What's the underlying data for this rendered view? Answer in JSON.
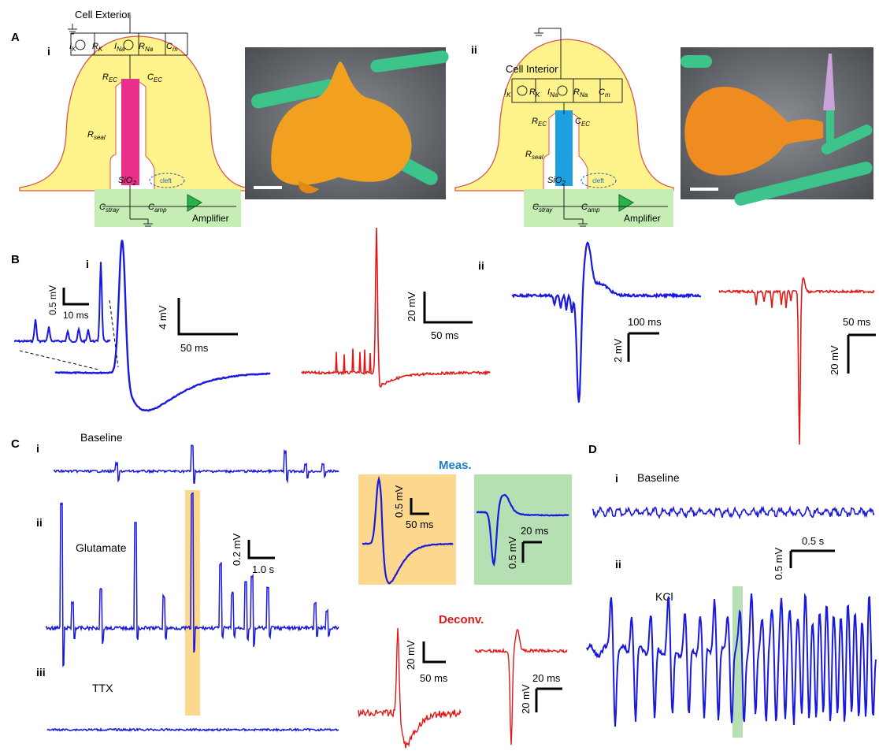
{
  "colors": {
    "measured": "#1a1adc",
    "deconvolved": "#e01818",
    "cell_fill": "#fff48c",
    "cell_outline": "#d9534f",
    "amp_box": "#c6eeb4",
    "nanowire_pink": "#e8308a",
    "nanowire_blue": "#1e9fe0",
    "highlight_orange": "#fbd88e",
    "highlight_green": "#b7dfb4",
    "meas_text": "#1a7fc4",
    "deconv_text": "#e01818"
  },
  "panels": {
    "A": {
      "letter": "A",
      "i": {
        "roman": "i",
        "cell_exterior": "Cell Exterior",
        "ik": "I",
        "ik_sub": "K",
        "rk": "R",
        "rk_sub": "K",
        "ina": "I",
        "ina_sub": "Na",
        "rna": "R",
        "rna_sub": "Na",
        "cm": "C",
        "cm_sub": "m",
        "rec": "R",
        "rec_sub": "EC",
        "cec": "C",
        "cec_sub": "EC",
        "rseal": "R",
        "rseal_sub": "seal",
        "sio2": "SiO",
        "sio2_sub": "2",
        "cleft": "cleft",
        "cstray": "C",
        "cstray_sub": "stray",
        "camp": "C",
        "camp_sub": "amp",
        "amplifier": "Amplifier"
      },
      "ii": {
        "roman": "ii",
        "cell_interior": "Cell Interior",
        "ik": "I",
        "ik_sub": "K",
        "rk": "R",
        "rk_sub": "K",
        "ina": "I",
        "ina_sub": "Na",
        "rna": "R",
        "rna_sub": "Na",
        "cm": "C",
        "cm_sub": "m",
        "rec": "R",
        "rec_sub": "EC",
        "cec": "C",
        "cec_sub": "EC",
        "rseal": "R",
        "rseal_sub": "seal",
        "sio2": "SiO",
        "sio2_sub": "2",
        "cleft": "cleft",
        "cstray": "C",
        "cstray_sub": "stray",
        "camp": "C",
        "camp_sub": "amp",
        "amplifier": "Amplifier"
      }
    },
    "B": {
      "letter": "B",
      "i": {
        "roman": "i",
        "inset_v": "0.5 mV",
        "inset_t": "10 ms",
        "blue_v": "4 mV",
        "blue_t": "50 ms",
        "red_v": "20 mV",
        "red_t": "50 ms"
      },
      "ii": {
        "roman": "ii",
        "blue_t": "100 ms",
        "blue_v": "2 mV",
        "red_t": "50 ms",
        "red_v": "20 mV"
      }
    },
    "C": {
      "letter": "C",
      "i": {
        "roman": "i",
        "condition": "Baseline"
      },
      "ii": {
        "roman": "ii",
        "condition": "Glutamate",
        "scale_v": "0.2 mV",
        "scale_t": "1.0 s"
      },
      "iii": {
        "roman": "iii",
        "condition": "TTX"
      },
      "meas": {
        "title": "Meas.",
        "a_v": "0.5 mV",
        "a_t": "50 ms",
        "b_t": "20 ms",
        "b_v": "0.5 mV"
      },
      "deconv": {
        "title": "Deconv.",
        "a_v": "20 mV",
        "a_t": "50 ms",
        "b_t": "20 ms",
        "b_v": "20 mV"
      }
    },
    "D": {
      "letter": "D",
      "i": {
        "roman": "i",
        "condition": "Baseline"
      },
      "ii": {
        "roman": "ii",
        "condition": "KCl"
      },
      "scale_v": "0.5 mV",
      "scale_t": "0.5 s"
    }
  }
}
